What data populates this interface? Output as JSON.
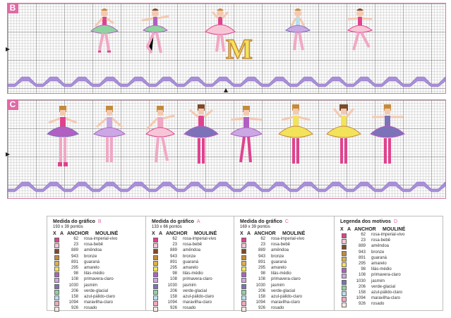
{
  "panels": [
    {
      "letter": "B"
    },
    {
      "letter": "C"
    }
  ],
  "monogram": {
    "letter": "M"
  },
  "legend_columns": {
    "x": "X",
    "a": "A",
    "anchor": "ANCHOR",
    "mouline": "MOULINÉ"
  },
  "legend_cards": [
    {
      "title": "Medida do gráfico",
      "tag": "B",
      "size": "193  x 39 pontos"
    },
    {
      "title": "Medida do gráfico",
      "tag": "A",
      "size": "133  x 66 pontos"
    },
    {
      "title": "Medida do gráfico",
      "tag": "C",
      "size": "169  x 39 pontos"
    },
    {
      "title": "Legenda dos motivos",
      "tag": "D",
      "size": ""
    }
  ],
  "threads": [
    {
      "anchor": "62",
      "name": "rosa-imperial-vivo",
      "color": "#e0428e"
    },
    {
      "anchor": "23",
      "name": "rosa-bebê",
      "color": "#f7c6d6"
    },
    {
      "anchor": "889",
      "name": "amêndoa",
      "color": "#7b4a2a"
    },
    {
      "anchor": "943",
      "name": "bronze",
      "color": "#c48a3c"
    },
    {
      "anchor": "891",
      "name": "guaraná",
      "color": "#d8b24a"
    },
    {
      "anchor": "295",
      "name": "amarelo",
      "color": "#f3e35a"
    },
    {
      "anchor": "98",
      "name": "lilás-médio",
      "color": "#b25fc2"
    },
    {
      "anchor": "108",
      "name": "primavera-claro",
      "color": "#c9a8e3"
    },
    {
      "anchor": "1030",
      "name": "jasmim",
      "color": "#7c72b8"
    },
    {
      "anchor": "206",
      "name": "verde-glacial",
      "color": "#8fd3a0"
    },
    {
      "anchor": "158",
      "name": "azul-pálido-claro",
      "color": "#b7e0ee"
    },
    {
      "anchor": "1094",
      "name": "maravilha-claro",
      "color": "#f0a8c4"
    },
    {
      "anchor": "926",
      "name": "rosado",
      "color": "#f4ece0"
    }
  ],
  "colors": {
    "accent": "#e06aa6",
    "wave": "#a88fd8",
    "wave_dark": "#8e74c6"
  }
}
